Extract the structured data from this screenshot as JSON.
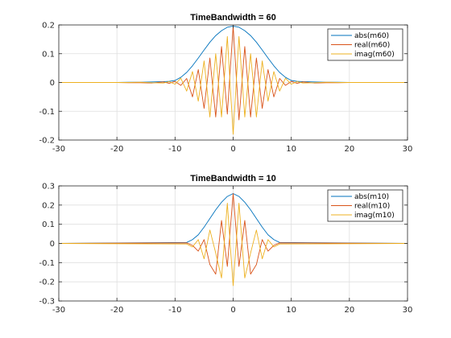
{
  "colors": {
    "abs": "#0072BD",
    "real": "#D95319",
    "imag": "#EDB120",
    "grid": "#dfdfdf",
    "axis": "#262626"
  },
  "chart_data": [
    {
      "type": "line",
      "title": "TimeBandwidth = 60",
      "xlim": [
        -30,
        30
      ],
      "ylim": [
        -0.2,
        0.2
      ],
      "xticks": [
        -30,
        -20,
        -10,
        0,
        10,
        20,
        30
      ],
      "yticks": [
        -0.2,
        -0.1,
        0,
        0.1,
        0.2
      ],
      "xtick_labels": [
        "-30",
        "-20",
        "-10",
        "0",
        "10",
        "20",
        "30"
      ],
      "ytick_labels": [
        "-0.2",
        "-0.1",
        "0",
        "0.1",
        "0.2"
      ],
      "grid": true,
      "legend_position": "top-right",
      "x": [
        -30,
        -20,
        -18,
        -16,
        -14,
        -12,
        -11,
        -10,
        -9,
        -8,
        -7,
        -6,
        -5,
        -4,
        -3,
        -2,
        -1,
        0,
        1,
        2,
        3,
        4,
        5,
        6,
        7,
        8,
        9,
        10,
        11,
        12,
        14,
        16,
        18,
        20,
        30
      ],
      "series": [
        {
          "name": "abs(m60)",
          "color_key": "abs",
          "values": [
            0,
            0,
            0.001,
            0.001,
            0.002,
            0.003,
            0.004,
            0.007,
            0.018,
            0.035,
            0.058,
            0.085,
            0.113,
            0.14,
            0.163,
            0.18,
            0.192,
            0.196,
            0.192,
            0.18,
            0.163,
            0.14,
            0.113,
            0.085,
            0.058,
            0.035,
            0.018,
            0.007,
            0.004,
            0.003,
            0.002,
            0.001,
            0.001,
            0,
            0
          ]
        },
        {
          "name": "real(m60)",
          "color_key": "real",
          "values": [
            0,
            0,
            -0.001,
            -0.001,
            -0.002,
            0.002,
            -0.003,
            0.004,
            -0.01,
            0.014,
            -0.05,
            0.045,
            -0.09,
            0.085,
            -0.12,
            0.125,
            -0.11,
            0.196,
            -0.13,
            0.125,
            -0.12,
            0.085,
            -0.09,
            0.045,
            -0.05,
            0.014,
            -0.01,
            0.004,
            -0.003,
            0.002,
            -0.002,
            -0.001,
            -0.001,
            0,
            0
          ]
        },
        {
          "name": "imag(m60)",
          "color_key": "imag",
          "values": [
            0,
            0,
            0,
            0.001,
            -0.001,
            -0.002,
            0.003,
            -0.006,
            0.015,
            -0.03,
            0.038,
            -0.065,
            0.075,
            -0.12,
            0.1,
            -0.12,
            0.16,
            -0.18,
            0.16,
            -0.12,
            0.1,
            -0.12,
            0.075,
            -0.065,
            0.038,
            -0.03,
            0.015,
            -0.006,
            0.003,
            -0.002,
            -0.001,
            0.001,
            0,
            0,
            0
          ]
        }
      ]
    },
    {
      "type": "line",
      "title": "TimeBandwidth = 10",
      "xlim": [
        -30,
        30
      ],
      "ylim": [
        -0.3,
        0.3
      ],
      "xticks": [
        -30,
        -20,
        -10,
        0,
        10,
        20,
        30
      ],
      "yticks": [
        -0.3,
        -0.2,
        -0.1,
        0,
        0.1,
        0.2,
        0.3
      ],
      "xtick_labels": [
        "-30",
        "-20",
        "-10",
        "0",
        "10",
        "20",
        "30"
      ],
      "ytick_labels": [
        "-0.3",
        "-0.2",
        "-0.1",
        "0",
        "0.1",
        "0.2",
        "0.3"
      ],
      "grid": true,
      "legend_position": "top-right",
      "x": [
        -30,
        -8,
        -7,
        -6,
        -5,
        -4,
        -3,
        -2,
        -1,
        0,
        1,
        2,
        3,
        4,
        5,
        6,
        7,
        8,
        30
      ],
      "series": [
        {
          "name": "abs(m10)",
          "color_key": "abs",
          "values": [
            0,
            0.005,
            0.02,
            0.045,
            0.085,
            0.13,
            0.175,
            0.215,
            0.245,
            0.26,
            0.245,
            0.215,
            0.175,
            0.13,
            0.085,
            0.045,
            0.02,
            0.005,
            0
          ]
        },
        {
          "name": "real(m10)",
          "color_key": "real",
          "values": [
            0,
            0.003,
            -0.01,
            -0.04,
            0.02,
            -0.11,
            -0.16,
            0.12,
            -0.12,
            0.26,
            -0.12,
            0.12,
            -0.16,
            -0.11,
            0.02,
            -0.04,
            -0.01,
            0.003,
            0
          ]
        },
        {
          "name": "imag(m10)",
          "color_key": "imag",
          "values": [
            0,
            -0.003,
            -0.018,
            0.02,
            -0.08,
            0.07,
            -0.05,
            -0.18,
            0.21,
            -0.22,
            0.21,
            -0.18,
            -0.05,
            0.07,
            -0.08,
            0.02,
            -0.018,
            -0.003,
            0
          ]
        }
      ]
    }
  ]
}
